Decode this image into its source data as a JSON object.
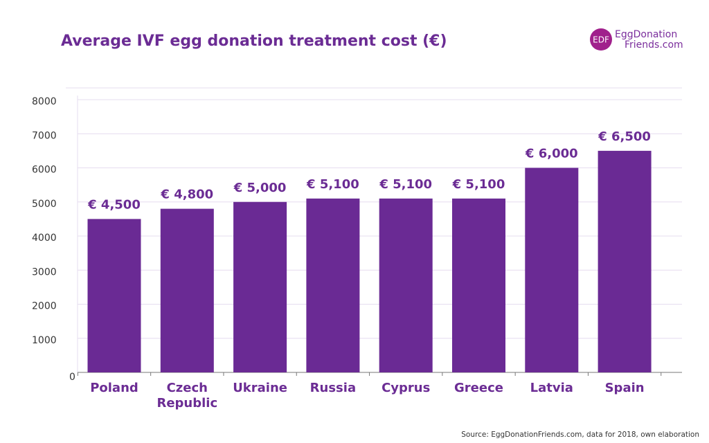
{
  "chart_data": {
    "type": "bar",
    "title": "Average IVF egg donation treatment cost (€)",
    "categories": [
      "Poland",
      "Czech Republic",
      "Ukraine",
      "Russia",
      "Cyprus",
      "Greece",
      "Latvia",
      "Spain"
    ],
    "values": [
      4500,
      4800,
      5000,
      5100,
      5100,
      5100,
      6000,
      6500
    ],
    "value_labels": [
      "€ 4,500",
      "€ 4,800",
      "€ 5,000",
      "€ 5,100",
      "€ 5,100",
      "€ 5,100",
      "€ 6,000",
      "€ 6,500"
    ],
    "color": "#6a2a94",
    "ylim": [
      0,
      8000
    ],
    "yticks": [
      0,
      1000,
      2000,
      3000,
      4000,
      5000,
      6000,
      7000,
      8000
    ],
    "grid": true,
    "source": "Source: EggDonationFriends.com, data for 2018, own elaboration",
    "logo": {
      "mark": "EDF",
      "lines": [
        "EggDonation",
        "Friends.com"
      ]
    }
  }
}
